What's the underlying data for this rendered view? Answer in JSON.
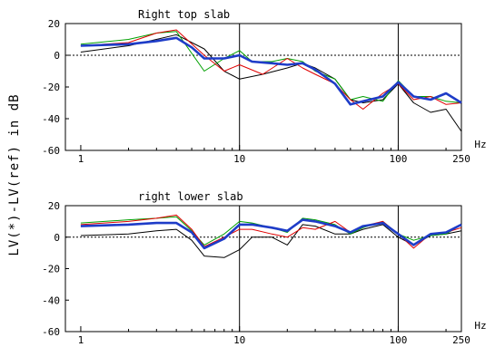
{
  "ylabel": "LV(*)-LV(ref) in dB",
  "chart_data": [
    {
      "type": "line",
      "title": "Right top slab",
      "xlabel": "Hz",
      "xscale": "log",
      "xlim": [
        0.8,
        250
      ],
      "ylim": [
        -60,
        20
      ],
      "yticks": [
        20,
        0,
        -20,
        -40,
        -60
      ],
      "xtick_labels": [
        "1",
        "10",
        "100",
        "250"
      ],
      "xticks": [
        1,
        10,
        100,
        250
      ],
      "reference_line": 0,
      "series": [
        {
          "color": "#000000",
          "x": [
            1,
            2,
            3,
            4,
            6,
            8,
            10,
            14,
            20,
            25,
            30,
            40,
            50,
            60,
            80,
            100,
            125,
            160,
            200,
            250
          ],
          "y": [
            2,
            6,
            10,
            13,
            4,
            -10,
            -15,
            -12,
            -8,
            -5,
            -8,
            -15,
            -28,
            -30,
            -28,
            -18,
            -30,
            -36,
            -34,
            -48
          ]
        },
        {
          "color": "#00a000",
          "x": [
            1,
            2,
            3,
            4,
            6,
            8,
            10,
            12,
            16,
            20,
            25,
            30,
            40,
            50,
            60,
            80,
            100,
            125,
            160,
            200,
            250
          ],
          "y": [
            7,
            10,
            14,
            15,
            -10,
            -2,
            3,
            -4,
            -4,
            -2,
            -4,
            -10,
            -15,
            -28,
            -26,
            -29,
            -16,
            -26,
            -26,
            -29,
            -30
          ]
        },
        {
          "color": "#e00000",
          "x": [
            1,
            2,
            3,
            4,
            6,
            8,
            10,
            14,
            20,
            25,
            30,
            40,
            50,
            60,
            80,
            100,
            125,
            160,
            200,
            250
          ],
          "y": [
            6,
            8,
            14,
            16,
            0,
            -10,
            -6,
            -12,
            -2,
            -8,
            -12,
            -18,
            -28,
            -34,
            -24,
            -18,
            -28,
            -26,
            -31,
            -30
          ]
        },
        {
          "color": "#1e3cc8",
          "x": [
            1,
            2,
            3,
            4,
            5,
            6,
            8,
            10,
            12,
            16,
            20,
            25,
            30,
            40,
            50,
            60,
            80,
            100,
            125,
            160,
            200,
            250
          ],
          "y": [
            6,
            7,
            9,
            11,
            5,
            -2,
            -2,
            0,
            -4,
            -5,
            -6,
            -5,
            -9,
            -18,
            -31,
            -29,
            -26,
            -17,
            -26,
            -28,
            -24,
            -30
          ]
        }
      ]
    },
    {
      "type": "line",
      "title": "right lower slab",
      "xlabel": "Hz",
      "xscale": "log",
      "xlim": [
        0.8,
        250
      ],
      "ylim": [
        -60,
        20
      ],
      "yticks": [
        20,
        0,
        -20,
        -40,
        -60
      ],
      "xtick_labels": [
        "1",
        "10",
        "100",
        "250"
      ],
      "xticks": [
        1,
        10,
        100,
        250
      ],
      "reference_line": 0,
      "series": [
        {
          "color": "#000000",
          "x": [
            1,
            2,
            3,
            4,
            5,
            6,
            8,
            10,
            12,
            16,
            20,
            25,
            30,
            40,
            50,
            60,
            80,
            100,
            125,
            160,
            200,
            250
          ],
          "y": [
            1,
            2,
            4,
            5,
            -2,
            -12,
            -13,
            -8,
            0,
            0,
            -5,
            8,
            7,
            2,
            2,
            5,
            8,
            0,
            -5,
            1,
            2,
            4
          ]
        },
        {
          "color": "#00a000",
          "x": [
            1,
            2,
            3,
            4,
            5,
            6,
            8,
            10,
            12,
            16,
            20,
            25,
            30,
            40,
            50,
            60,
            80,
            100,
            125,
            160,
            200,
            250
          ],
          "y": [
            9,
            11,
            12,
            13,
            4,
            -5,
            2,
            10,
            9,
            6,
            3,
            12,
            11,
            8,
            2,
            6,
            10,
            2,
            -2,
            1,
            2,
            8
          ]
        },
        {
          "color": "#e00000",
          "x": [
            1,
            2,
            3,
            4,
            5,
            6,
            8,
            10,
            12,
            16,
            20,
            25,
            30,
            40,
            50,
            60,
            80,
            100,
            125,
            160,
            200,
            250
          ],
          "y": [
            8,
            10,
            12,
            14,
            5,
            -6,
            0,
            5,
            5,
            2,
            0,
            6,
            5,
            10,
            3,
            7,
            10,
            2,
            -7,
            2,
            3,
            6
          ]
        },
        {
          "color": "#1e3cc8",
          "x": [
            1,
            2,
            3,
            4,
            5,
            6,
            8,
            10,
            12,
            16,
            20,
            25,
            30,
            40,
            50,
            60,
            80,
            100,
            125,
            160,
            200,
            250
          ],
          "y": [
            7,
            8,
            9,
            9,
            3,
            -7,
            -1,
            8,
            8,
            6,
            4,
            11,
            10,
            7,
            3,
            7,
            9,
            2,
            -5,
            2,
            3,
            8
          ]
        }
      ]
    }
  ]
}
